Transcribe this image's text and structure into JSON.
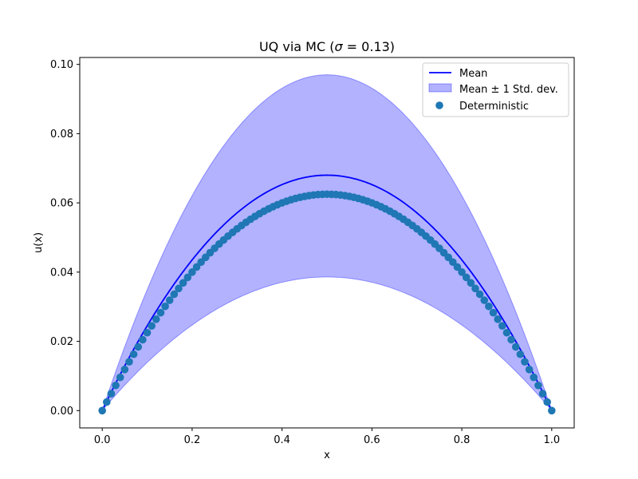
{
  "chart_data": {
    "type": "line",
    "title_prefix": "UQ via MC (",
    "title_sigma": "σ",
    "title_suffix": " = 0.13)",
    "xlabel": "x",
    "ylabel": "u(x)",
    "xlim": [
      -0.05,
      1.05
    ],
    "ylim": [
      -0.005,
      0.102
    ],
    "xticks": [
      0.0,
      0.2,
      0.4,
      0.6,
      0.8,
      1.0
    ],
    "xtick_labels": [
      "0.0",
      "0.2",
      "0.4",
      "0.6",
      "0.8",
      "1.0"
    ],
    "yticks": [
      0.0,
      0.02,
      0.04,
      0.06,
      0.08,
      0.1
    ],
    "ytick_labels": [
      "0.00",
      "0.02",
      "0.04",
      "0.06",
      "0.08",
      "0.10"
    ],
    "legend_position": "top-right",
    "series": [
      {
        "name": "Mean",
        "kind": "line",
        "color": "#0000ff",
        "x": [
          0.0,
          0.1,
          0.2,
          0.3,
          0.4,
          0.5,
          0.6,
          0.7,
          0.8,
          0.9,
          1.0
        ],
        "y": [
          0.0,
          0.0245,
          0.0435,
          0.0571,
          0.0653,
          0.068,
          0.0653,
          0.0571,
          0.0435,
          0.0245,
          0.0
        ]
      },
      {
        "name": "Mean ± 1 Std. dev.",
        "kind": "band",
        "color": "#0000ff",
        "x": [
          0.0,
          0.1,
          0.2,
          0.3,
          0.4,
          0.5,
          0.6,
          0.7,
          0.8,
          0.9,
          1.0
        ],
        "lower": [
          0.0,
          0.0139,
          0.0247,
          0.0324,
          0.037,
          0.0386,
          0.037,
          0.0324,
          0.0247,
          0.0139,
          0.0
        ],
        "upper": [
          0.0,
          0.0349,
          0.0621,
          0.0815,
          0.0931,
          0.097,
          0.0931,
          0.0815,
          0.0621,
          0.0349,
          0.0
        ]
      },
      {
        "name": "Deterministic",
        "kind": "scatter",
        "color": "#1f77b4",
        "n_points": 101,
        "x_range": [
          0.0,
          1.0
        ],
        "y": [
          0.0,
          0.0225,
          0.04,
          0.0525,
          0.06,
          0.0625,
          0.06,
          0.0525,
          0.04,
          0.0225,
          0.0
        ],
        "y_sample_x": [
          0.0,
          0.1,
          0.2,
          0.3,
          0.4,
          0.5,
          0.6,
          0.7,
          0.8,
          0.9,
          1.0
        ]
      }
    ]
  }
}
